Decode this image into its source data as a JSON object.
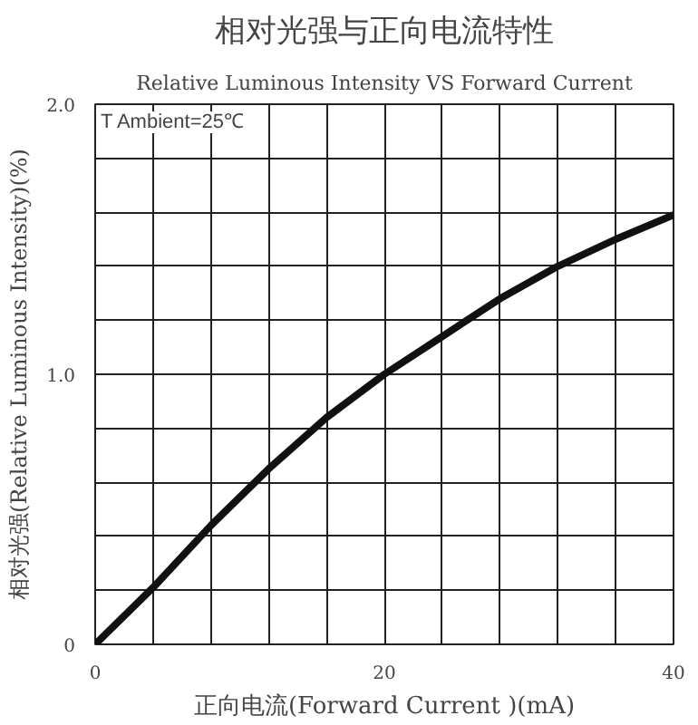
{
  "chart_data": {
    "type": "line",
    "title": "相对光强与正向电流特性",
    "subtitle": "Relative Luminous Intensity VS Forward Current",
    "xlabel": "正向电流(Forward Current )(mA)",
    "ylabel": "相对光强(Relative Luminous Intensity)(%)",
    "annotations": [
      "T Ambient=25℃"
    ],
    "x": [
      0,
      4,
      8,
      12,
      16,
      20,
      24,
      28,
      32,
      36,
      40
    ],
    "series": [
      {
        "color": "#111111",
        "values": [
          0,
          0.21,
          0.44,
          0.65,
          0.84,
          1.0,
          1.14,
          1.28,
          1.4,
          1.5,
          1.59
        ]
      }
    ],
    "xlim": [
      0,
      40
    ],
    "ylim": [
      0,
      2
    ],
    "xticks": [
      0,
      {
        "value": 4,
        "label": null
      },
      {
        "value": 8,
        "label": null
      },
      {
        "value": 12,
        "label": null
      },
      {
        "value": 16,
        "label": null
      },
      20,
      {
        "value": 24,
        "label": null
      },
      {
        "value": 28,
        "label": null
      },
      {
        "value": 32,
        "label": null
      },
      {
        "value": 36,
        "label": null
      },
      40
    ],
    "yticks": [
      0,
      {
        "value": 0.2,
        "label": null
      },
      {
        "value": 0.4,
        "label": null
      },
      {
        "value": 0.6,
        "label": null
      },
      {
        "value": 0.8,
        "label": null
      },
      {
        "value": 1,
        "label": "1.0"
      },
      {
        "value": 1.2,
        "label": null
      },
      {
        "value": 1.4,
        "label": null
      },
      {
        "value": 1.6,
        "label": null
      },
      {
        "value": 1.8,
        "label": null
      },
      {
        "value": 2,
        "label": "2.0"
      }
    ],
    "grid": true,
    "marker": "none",
    "line_style": "solid"
  }
}
